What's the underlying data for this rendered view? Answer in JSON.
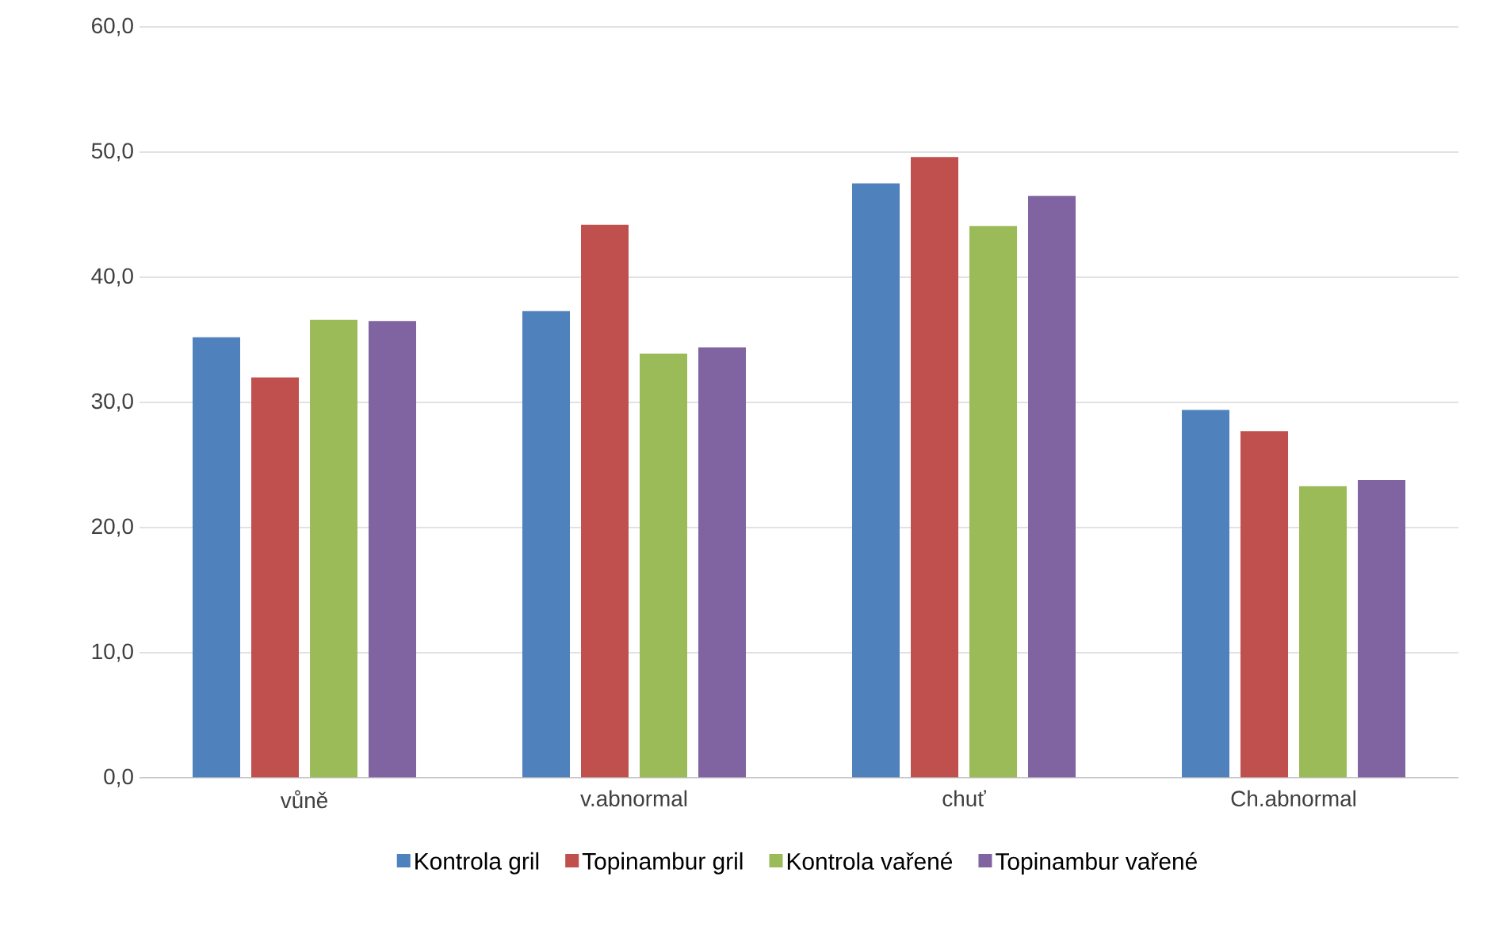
{
  "chart_data": {
    "type": "bar",
    "categories": [
      "vůně",
      "v.abnormal",
      "chuť",
      "Ch.abnormal"
    ],
    "series": [
      {
        "name": "Kontrola gril",
        "color": "#4f81bd",
        "values": [
          35.2,
          37.3,
          47.5,
          29.4
        ]
      },
      {
        "name": "Topinambur gril",
        "color": "#c0504d",
        "values": [
          32.0,
          44.2,
          49.6,
          27.7
        ]
      },
      {
        "name": "Kontrola vařené",
        "color": "#9bbb59",
        "values": [
          36.6,
          33.9,
          44.1,
          23.3
        ]
      },
      {
        "name": "Topinambur vařené",
        "color": "#8064a2",
        "values": [
          36.5,
          34.4,
          46.5,
          23.8
        ]
      }
    ],
    "ylim": [
      0,
      60
    ],
    "yticks": [
      {
        "value": 0,
        "label": "0,0"
      },
      {
        "value": 10,
        "label": "10,0"
      },
      {
        "value": 20,
        "label": "20,0"
      },
      {
        "value": 30,
        "label": "30,0"
      },
      {
        "value": 40,
        "label": "40,0"
      },
      {
        "value": 50,
        "label": "50,0"
      },
      {
        "value": 60,
        "label": "60,0"
      }
    ],
    "grid": "y",
    "legend": "bottom"
  }
}
